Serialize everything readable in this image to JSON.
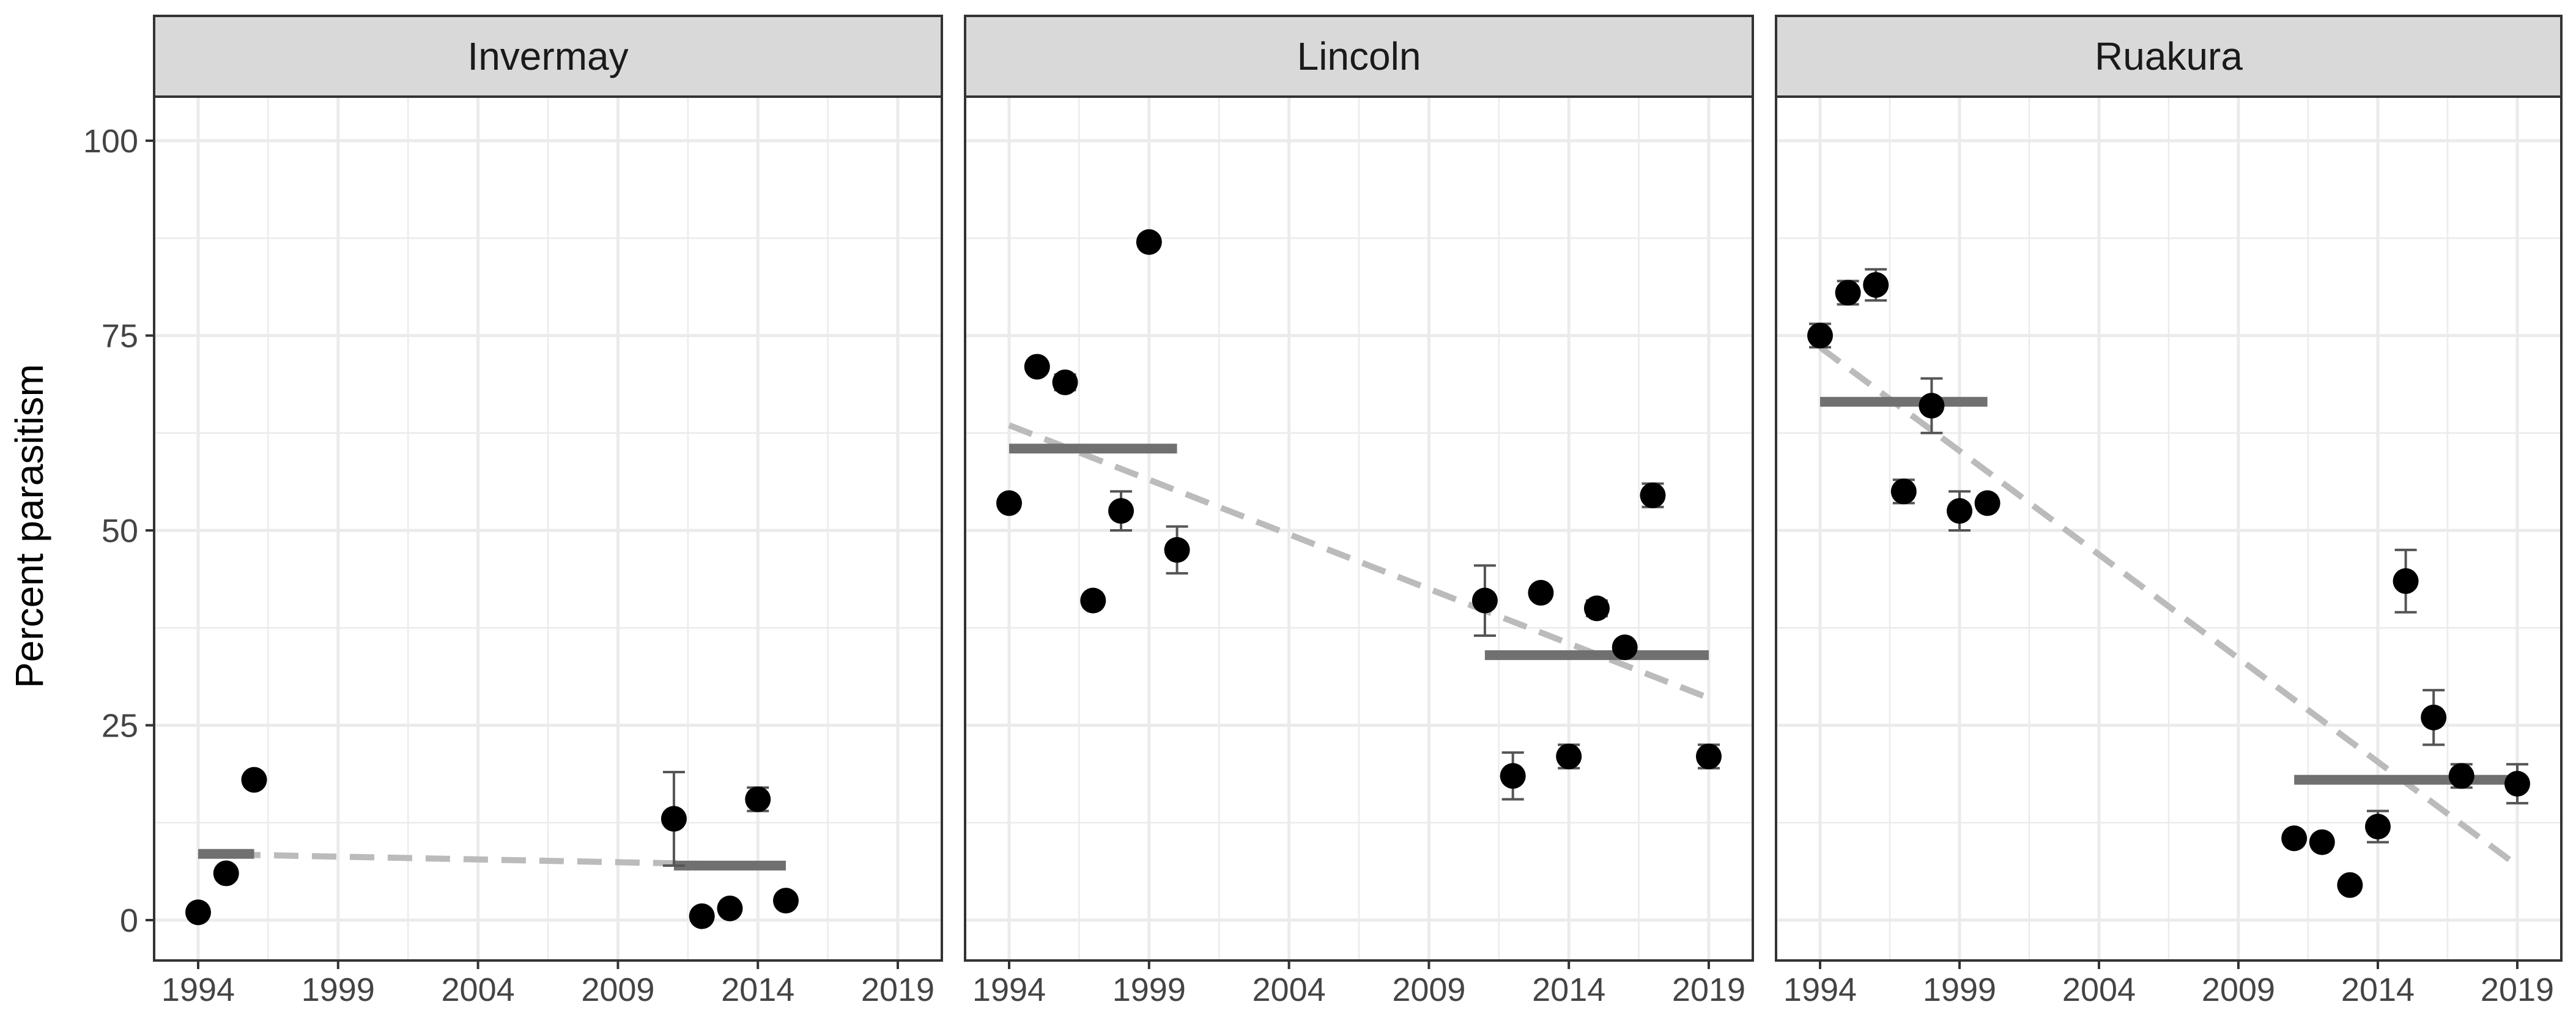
{
  "chart_data": {
    "type": "scatter",
    "ylabel": "Percent parasitism",
    "xlabel": "",
    "ylim": [
      0,
      100
    ],
    "yticks": [
      0,
      25,
      50,
      75,
      100
    ],
    "xticks": [
      1994,
      1999,
      2004,
      2009,
      2014,
      2019
    ],
    "grid": true,
    "colors": {
      "point": "#000000",
      "period_mean": "#707070",
      "trend": "#bbbbbb",
      "strip_fill": "#d9d9d9",
      "grid": "#ebebeb",
      "frame": "#333333",
      "error_bar": "#555555"
    },
    "panels": [
      {
        "name": "Invermay",
        "points": [
          {
            "x": 1994,
            "y": 1
          },
          {
            "x": 1995,
            "y": 6
          },
          {
            "x": 1996,
            "y": 18
          },
          {
            "x": 2011,
            "y": 13,
            "err": 6
          },
          {
            "x": 2012,
            "y": 0.5
          },
          {
            "x": 2013,
            "y": 1.5
          },
          {
            "x": 2014,
            "y": 15.5,
            "err": 1.5
          },
          {
            "x": 2015,
            "y": 2.5
          }
        ],
        "period_means": [
          {
            "x0": 1994,
            "x1": 1996,
            "y": 8.5
          },
          {
            "x0": 2011,
            "x1": 2015,
            "y": 7
          }
        ],
        "trend": {
          "x0": 1994,
          "y0": 8.5,
          "x1": 2015,
          "y1": 7
        }
      },
      {
        "name": "Lincoln",
        "points": [
          {
            "x": 1994,
            "y": 53.5
          },
          {
            "x": 1995,
            "y": 71
          },
          {
            "x": 1996,
            "y": 69,
            "err": 1
          },
          {
            "x": 1997,
            "y": 41
          },
          {
            "x": 1998,
            "y": 52.5,
            "err": 2.5
          },
          {
            "x": 1999,
            "y": 87
          },
          {
            "x": 2000,
            "y": 47.5,
            "err": 3
          },
          {
            "x": 2011,
            "y": 41,
            "err": 4.5
          },
          {
            "x": 2012,
            "y": 18.5,
            "err": 3
          },
          {
            "x": 2013,
            "y": 42
          },
          {
            "x": 2014,
            "y": 21,
            "err": 1.5
          },
          {
            "x": 2015,
            "y": 40,
            "err": 1
          },
          {
            "x": 2016,
            "y": 35
          },
          {
            "x": 2017,
            "y": 54.5,
            "err": 1.5
          },
          {
            "x": 2019,
            "y": 21,
            "err": 1.5
          }
        ],
        "period_means": [
          {
            "x0": 1994,
            "x1": 2000,
            "y": 60.5
          },
          {
            "x0": 2011,
            "x1": 2019,
            "y": 34
          }
        ],
        "trend": {
          "x0": 1994,
          "y0": 63.5,
          "x1": 2019,
          "y1": 28.5
        }
      },
      {
        "name": "Ruakura",
        "points": [
          {
            "x": 1994,
            "y": 75,
            "err": 1.5
          },
          {
            "x": 1995,
            "y": 80.5,
            "err": 1.5
          },
          {
            "x": 1996,
            "y": 81.5,
            "err": 2
          },
          {
            "x": 1997,
            "y": 55,
            "err": 1.5
          },
          {
            "x": 1998,
            "y": 66,
            "err": 3.5
          },
          {
            "x": 1999,
            "y": 52.5,
            "err": 2.5
          },
          {
            "x": 2000,
            "y": 53.5
          },
          {
            "x": 2011,
            "y": 10.5
          },
          {
            "x": 2012,
            "y": 10
          },
          {
            "x": 2013,
            "y": 4.5
          },
          {
            "x": 2014,
            "y": 12,
            "err": 2
          },
          {
            "x": 2015,
            "y": 43.5,
            "err": 4
          },
          {
            "x": 2016,
            "y": 26,
            "err": 3.5
          },
          {
            "x": 2017,
            "y": 18.5,
            "err": 1.5
          },
          {
            "x": 2019,
            "y": 17.5,
            "err": 2.5
          }
        ],
        "period_means": [
          {
            "x0": 1994,
            "x1": 2000,
            "y": 66.5
          },
          {
            "x0": 2011,
            "x1": 2019,
            "y": 18
          }
        ],
        "trend": {
          "x0": 1994,
          "y0": 73.5,
          "x1": 2019,
          "y1": 7
        }
      }
    ]
  }
}
